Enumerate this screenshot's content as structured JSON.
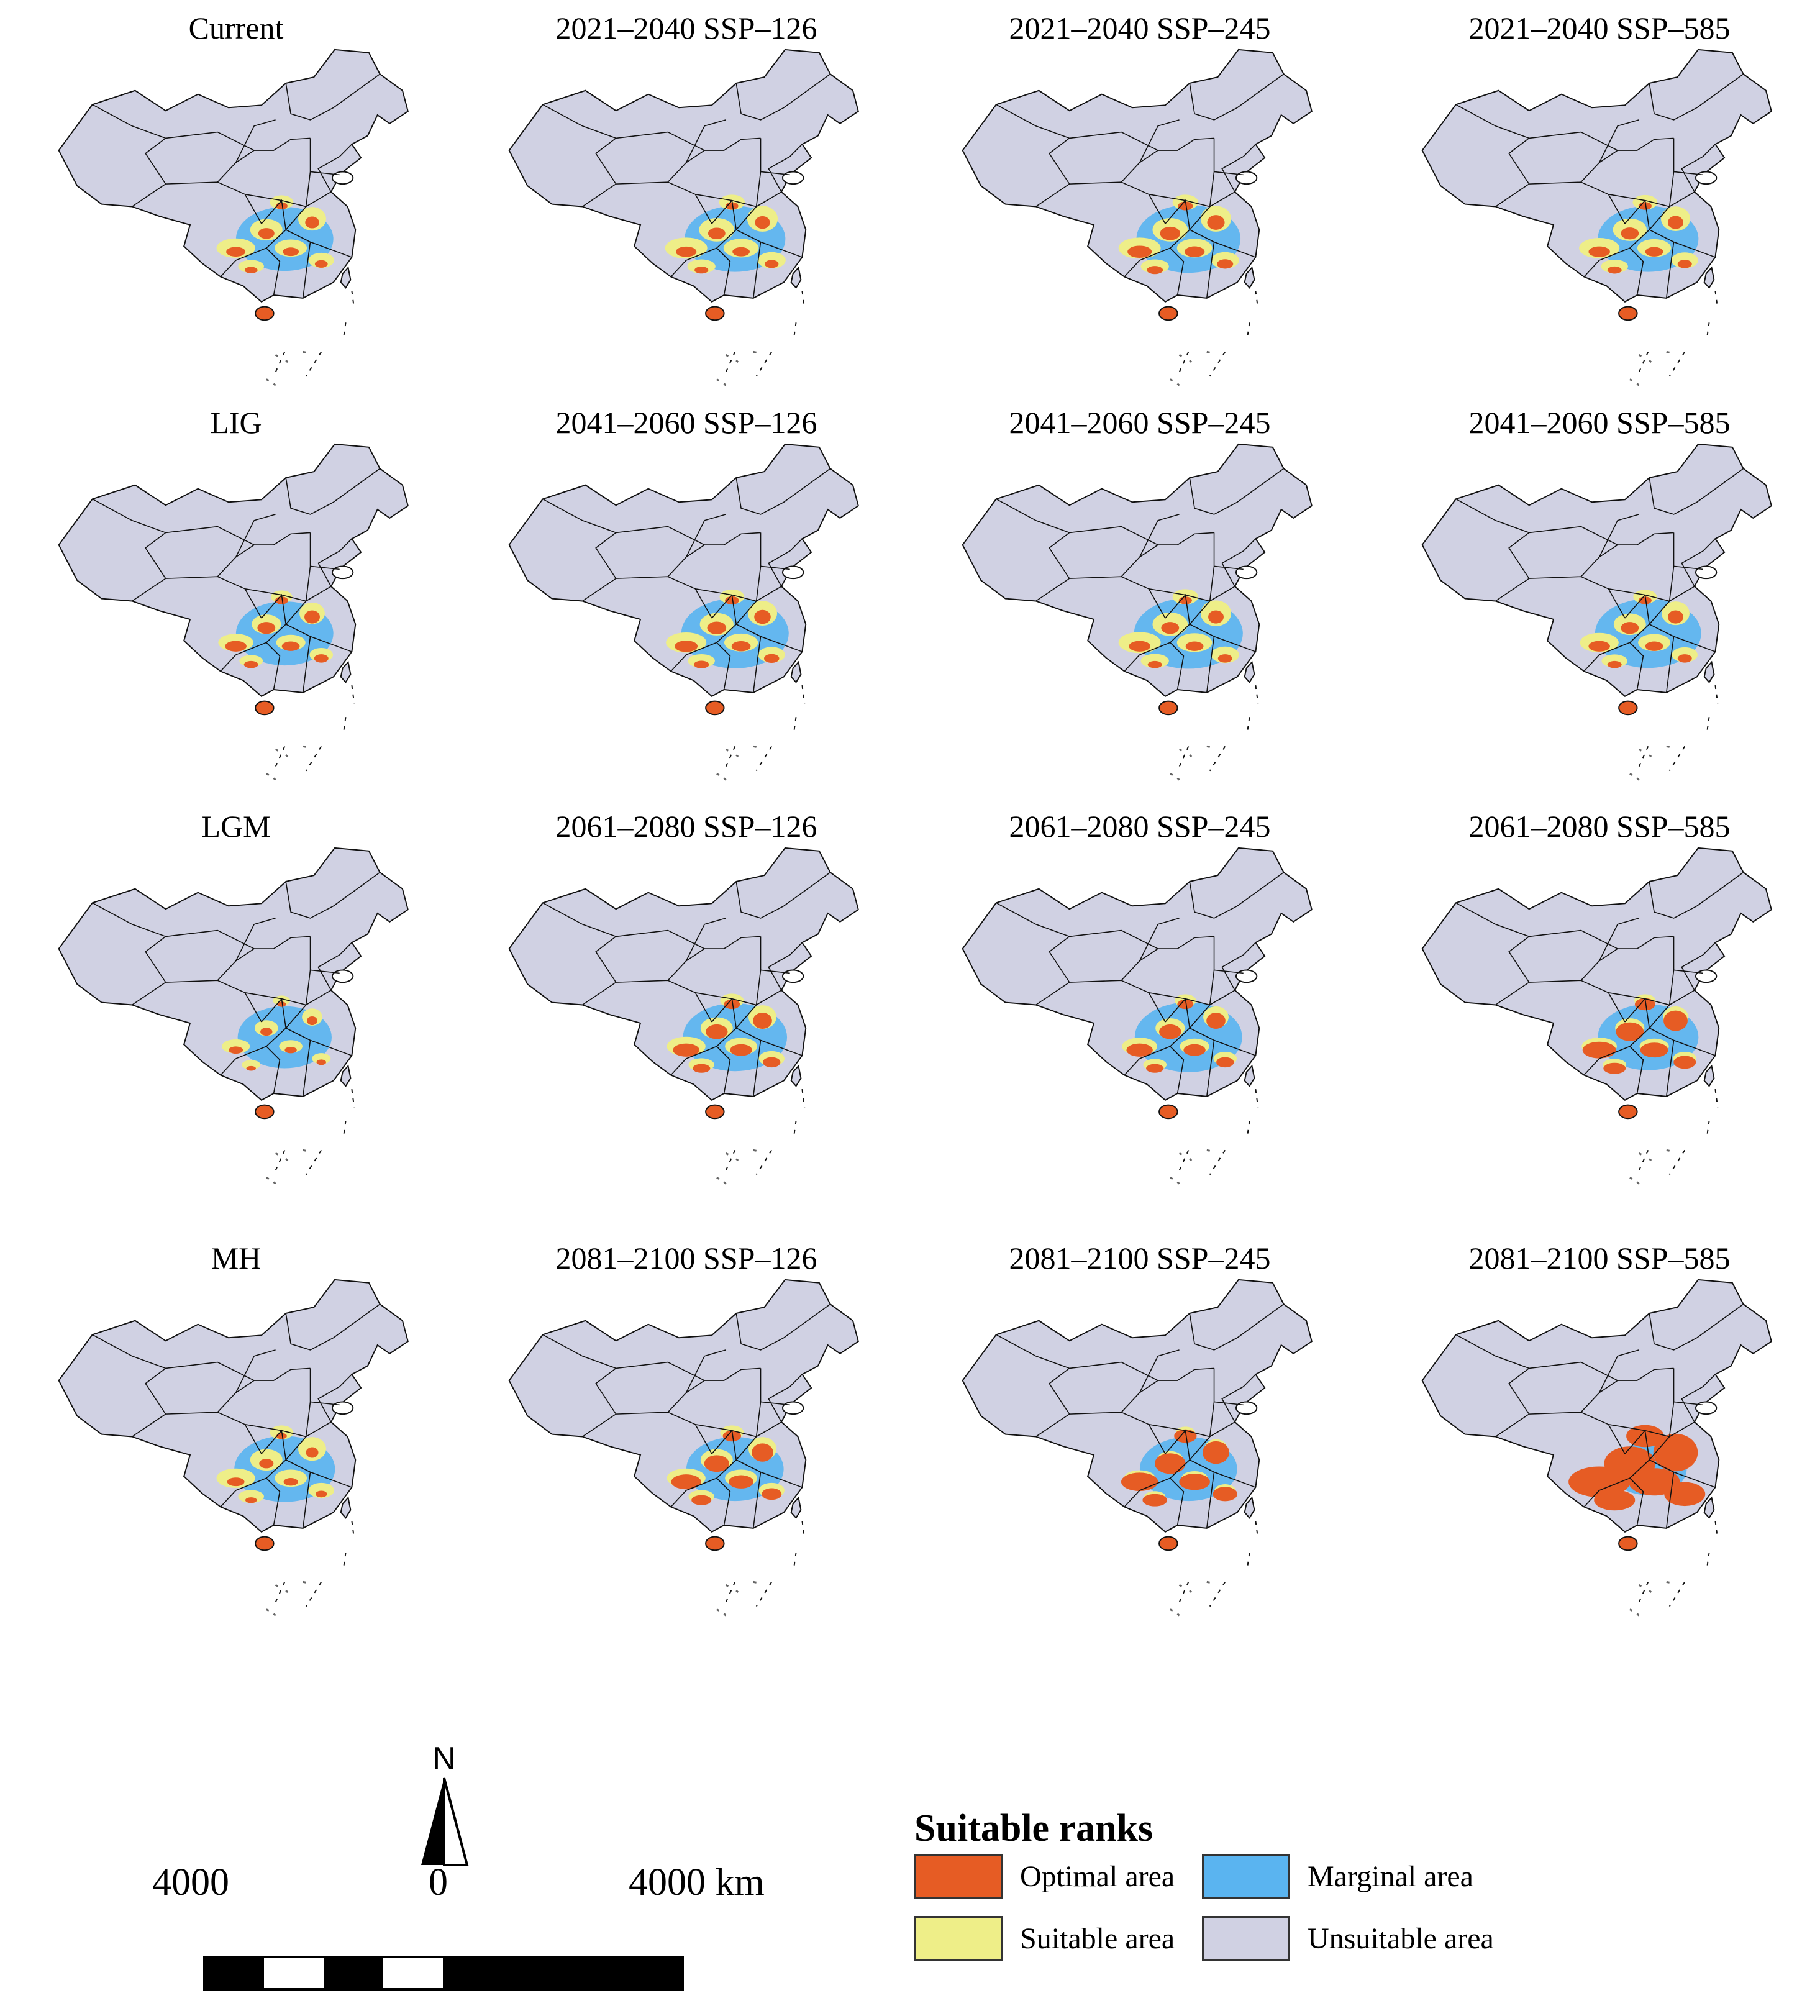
{
  "legend": {
    "title": "Suitable ranks",
    "items": [
      {
        "label": "Optimal area",
        "color": "#e65c24"
      },
      {
        "label": "Marginal area",
        "color": "#5ab4f0"
      },
      {
        "label": "Suitable area",
        "color": "#eeee88"
      },
      {
        "label": "Unsuitable area",
        "color": "#d0d1e3"
      }
    ]
  },
  "scale_bar": {
    "left_label": "4000",
    "center_label": "0",
    "right_label": "4000 km"
  },
  "north_arrow": {
    "label": "N"
  },
  "panels": [
    {
      "title": "Current",
      "suitability": {
        "optimal": 0.15,
        "suitable": 0.12,
        "marginal": 0.45
      }
    },
    {
      "title": "2021–2040 SSP–126",
      "suitability": {
        "optimal": 0.17,
        "suitable": 0.14,
        "marginal": 0.5
      }
    },
    {
      "title": "2021–2040 SSP–245",
      "suitability": {
        "optimal": 0.22,
        "suitable": 0.14,
        "marginal": 0.55
      }
    },
    {
      "title": "2021–2040 SSP–585",
      "suitability": {
        "optimal": 0.18,
        "suitable": 0.13,
        "marginal": 0.5
      }
    },
    {
      "title": "LIG",
      "suitability": {
        "optimal": 0.18,
        "suitable": 0.1,
        "marginal": 0.45
      }
    },
    {
      "title": "2041–2060 SSP–126",
      "suitability": {
        "optimal": 0.2,
        "suitable": 0.13,
        "marginal": 0.6
      }
    },
    {
      "title": "2041–2060 SSP–245",
      "suitability": {
        "optimal": 0.18,
        "suitable": 0.14,
        "marginal": 0.62
      }
    },
    {
      "title": "2041–2060 SSP–585",
      "suitability": {
        "optimal": 0.18,
        "suitable": 0.12,
        "marginal": 0.58
      }
    },
    {
      "title": "LGM",
      "suitability": {
        "optimal": 0.08,
        "suitable": 0.06,
        "marginal": 0.4
      }
    },
    {
      "title": "2061–2080 SSP–126",
      "suitability": {
        "optimal": 0.25,
        "suitable": 0.12,
        "marginal": 0.55
      }
    },
    {
      "title": "2061–2080 SSP–245",
      "suitability": {
        "optimal": 0.25,
        "suitable": 0.1,
        "marginal": 0.6
      }
    },
    {
      "title": "2061–2080 SSP–585",
      "suitability": {
        "optimal": 0.35,
        "suitable": 0.1,
        "marginal": 0.5
      }
    },
    {
      "title": "MH",
      "suitability": {
        "optimal": 0.12,
        "suitable": 0.12,
        "marginal": 0.5
      }
    },
    {
      "title": "2081–2100 SSP–126",
      "suitability": {
        "optimal": 0.3,
        "suitable": 0.12,
        "marginal": 0.45
      }
    },
    {
      "title": "2081–2100 SSP–245",
      "suitability": {
        "optimal": 0.4,
        "suitable": 0.08,
        "marginal": 0.45
      }
    },
    {
      "title": "2081–2100 SSP–585",
      "suitability": {
        "optimal": 0.75,
        "suitable": 0.05,
        "marginal": 0.15
      }
    }
  ]
}
